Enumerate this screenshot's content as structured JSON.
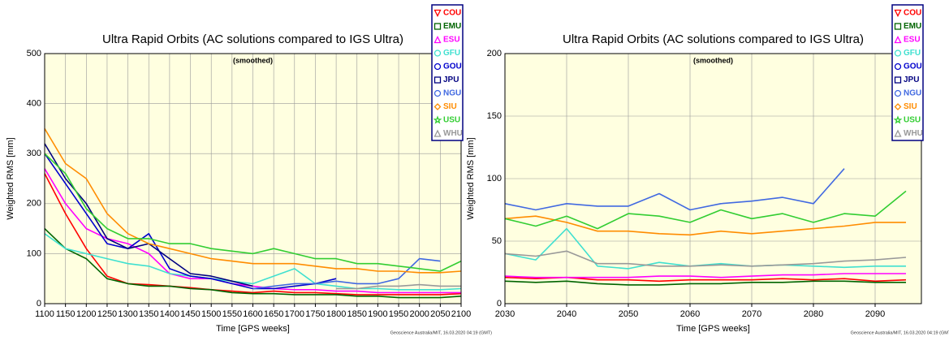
{
  "chart_data": [
    {
      "type": "line",
      "title": "Ultra Rapid Orbits (AC solutions compared to IGS Ultra)",
      "subtitle": "(smoothed)",
      "xlabel": "Time [GPS weeks]",
      "ylabel": "Weighted RMS [mm]",
      "footer": "Geoscience Australia/MIT, 16.03.2020 04:19 (GMT)",
      "xlim": [
        1100,
        2100
      ],
      "ylim": [
        0,
        500
      ],
      "grid": true,
      "legend": "upper right",
      "xticks": [
        1100,
        1150,
        1200,
        1250,
        1300,
        1350,
        1400,
        1450,
        1500,
        1550,
        1600,
        1650,
        1700,
        1750,
        1800,
        1850,
        1900,
        1950,
        2000,
        2050,
        2100
      ],
      "yticks": [
        0,
        100,
        200,
        300,
        400,
        500
      ],
      "x": [
        1100,
        1150,
        1200,
        1250,
        1300,
        1350,
        1400,
        1450,
        1500,
        1550,
        1600,
        1650,
        1700,
        1750,
        1800,
        1850,
        1900,
        1950,
        2000,
        2050,
        2100
      ],
      "series": [
        {
          "name": "COU",
          "color": "#ff0000",
          "marker": "triangle-down",
          "values": [
            260,
            180,
            110,
            55,
            40,
            38,
            35,
            32,
            28,
            25,
            22,
            25,
            22,
            22,
            20,
            18,
            18,
            18,
            18,
            18,
            20
          ]
        },
        {
          "name": "EMU",
          "color": "#006400",
          "marker": "square",
          "values": [
            150,
            110,
            90,
            50,
            40,
            35,
            35,
            30,
            28,
            22,
            20,
            20,
            18,
            18,
            18,
            15,
            15,
            12,
            12,
            12,
            15
          ]
        },
        {
          "name": "ESU",
          "color": "#ff00ff",
          "marker": "triangle-up",
          "values": [
            270,
            200,
            150,
            130,
            120,
            100,
            60,
            50,
            50,
            40,
            35,
            30,
            28,
            28,
            25,
            25,
            22,
            22,
            22,
            22,
            22
          ]
        },
        {
          "name": "GFU",
          "color": "#40e0d0",
          "marker": "circle",
          "values": [
            140,
            110,
            100,
            90,
            80,
            75,
            60,
            55,
            50,
            45,
            40,
            55,
            70,
            40,
            35,
            30,
            30,
            28,
            28,
            28,
            30
          ]
        },
        {
          "name": "GOU",
          "color": "#0000cd",
          "marker": "circle",
          "values": [
            300,
            240,
            180,
            120,
            110,
            140,
            70,
            55,
            50,
            40,
            30,
            30,
            35,
            40,
            50,
            null,
            null,
            null,
            null,
            null,
            null
          ]
        },
        {
          "name": "JPU",
          "color": "#000080",
          "marker": "square",
          "values": [
            320,
            250,
            200,
            130,
            110,
            120,
            90,
            60,
            55,
            45,
            35,
            null,
            null,
            null,
            null,
            null,
            null,
            null,
            null,
            null,
            null
          ]
        },
        {
          "name": "NGU",
          "color": "#4169e1",
          "marker": "circle",
          "values": [
            null,
            null,
            null,
            null,
            null,
            null,
            null,
            null,
            null,
            null,
            30,
            35,
            40,
            40,
            45,
            40,
            40,
            50,
            90,
            85,
            null
          ]
        },
        {
          "name": "SIU",
          "color": "#ff8c00",
          "marker": "diamond",
          "values": [
            350,
            280,
            250,
            180,
            140,
            120,
            110,
            100,
            90,
            85,
            80,
            80,
            80,
            75,
            70,
            70,
            65,
            65,
            62,
            62,
            65
          ]
        },
        {
          "name": "USU",
          "color": "#32cd32",
          "marker": "star",
          "values": [
            300,
            260,
            190,
            150,
            130,
            130,
            120,
            120,
            110,
            105,
            100,
            110,
            100,
            90,
            90,
            80,
            80,
            75,
            70,
            65,
            85
          ]
        },
        {
          "name": "WHU",
          "color": "#999999",
          "marker": "triangle-up",
          "values": [
            null,
            null,
            null,
            null,
            null,
            null,
            null,
            null,
            null,
            null,
            null,
            null,
            null,
            null,
            30,
            30,
            35,
            35,
            38,
            35,
            35
          ]
        }
      ]
    },
    {
      "type": "line",
      "title": "Ultra Rapid Orbits (AC solutions compared to IGS Ultra)",
      "subtitle": "(smoothed)",
      "xlabel": "Time [GPS weeks]",
      "ylabel": "Weighted RMS [mm]",
      "footer": "Geoscience Australia/MIT, 16.03.2020 04:19 (GMT)",
      "xlim": [
        2030,
        2097.5
      ],
      "ylim": [
        0,
        200
      ],
      "grid": true,
      "legend": "upper right",
      "xticks": [
        2030,
        2040,
        2050,
        2060,
        2070,
        2080,
        2090
      ],
      "yticks": [
        0,
        50,
        100,
        150,
        200
      ],
      "x": [
        2030,
        2035,
        2040,
        2045,
        2050,
        2055,
        2060,
        2065,
        2070,
        2075,
        2080,
        2085,
        2090,
        2095
      ],
      "series": [
        {
          "name": "COU",
          "color": "#ff0000",
          "marker": "triangle-down",
          "values": [
            21,
            20,
            21,
            19,
            19,
            18,
            19,
            19,
            19,
            20,
            19,
            20,
            18,
            19
          ]
        },
        {
          "name": "EMU",
          "color": "#006400",
          "marker": "square",
          "values": [
            18,
            17,
            18,
            16,
            15,
            15,
            16,
            16,
            17,
            17,
            18,
            18,
            17,
            17
          ]
        },
        {
          "name": "ESU",
          "color": "#ff00ff",
          "marker": "triangle-up",
          "values": [
            22,
            21,
            21,
            21,
            21,
            22,
            22,
            21,
            22,
            23,
            23,
            24,
            24,
            24
          ]
        },
        {
          "name": "GFU",
          "color": "#40e0d0",
          "marker": "circle",
          "values": [
            40,
            35,
            60,
            30,
            28,
            33,
            30,
            32,
            30,
            31,
            30,
            29,
            30,
            30
          ]
        },
        {
          "name": "GOU",
          "color": "#0000cd",
          "marker": "circle",
          "values": [
            null,
            null,
            null,
            null,
            null,
            null,
            null,
            null,
            null,
            null,
            null,
            null,
            null,
            null
          ]
        },
        {
          "name": "JPU",
          "color": "#000080",
          "marker": "square",
          "values": [
            null,
            null,
            null,
            null,
            null,
            null,
            null,
            null,
            null,
            null,
            null,
            null,
            null,
            null
          ]
        },
        {
          "name": "NGU",
          "color": "#4169e1",
          "marker": "circle",
          "values": [
            80,
            75,
            80,
            78,
            78,
            88,
            75,
            80,
            82,
            85,
            80,
            108,
            null,
            null
          ]
        },
        {
          "name": "SIU",
          "color": "#ff8c00",
          "marker": "diamond",
          "values": [
            68,
            70,
            65,
            58,
            58,
            56,
            55,
            58,
            56,
            58,
            60,
            62,
            65,
            65
          ]
        },
        {
          "name": "USU",
          "color": "#32cd32",
          "marker": "star",
          "values": [
            68,
            62,
            70,
            60,
            72,
            70,
            65,
            75,
            68,
            72,
            65,
            72,
            70,
            90
          ]
        },
        {
          "name": "WHU",
          "color": "#999999",
          "marker": "triangle-up",
          "values": [
            40,
            38,
            42,
            32,
            32,
            30,
            30,
            31,
            30,
            31,
            32,
            34,
            35,
            37
          ]
        }
      ]
    }
  ]
}
